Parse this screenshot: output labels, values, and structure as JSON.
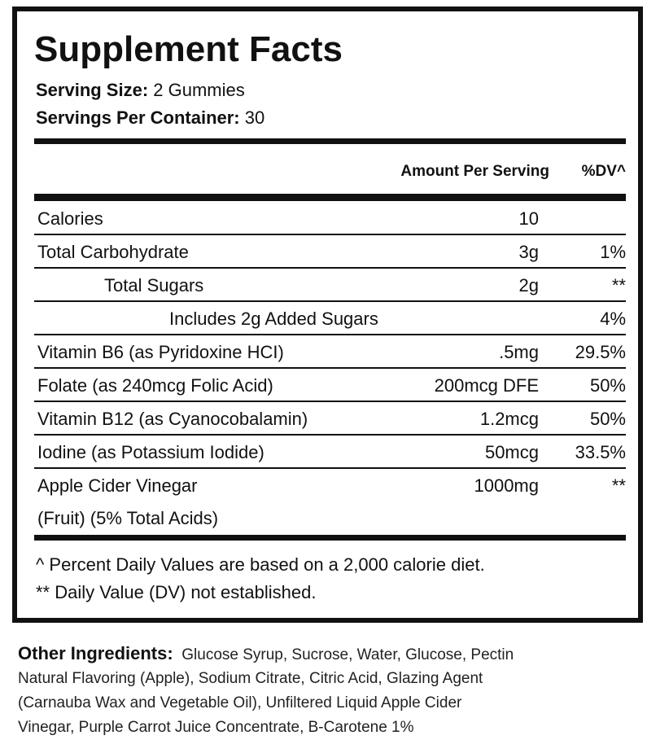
{
  "header": {
    "title": "Supplement Facts",
    "serving_size_label": "Serving Size:",
    "serving_size": "2 Gummies",
    "servings_label": "Servings Per Container:",
    "servings": "30"
  },
  "columns": {
    "amount": "Amount Per Serving",
    "dv": "%DV^"
  },
  "rows": [
    {
      "name": "Calories",
      "amount": "10"
    },
    {
      "name": "Total Carbohydrate",
      "amount": "3g",
      "dv": "1%"
    },
    {
      "name": "Total Sugars",
      "amount": "2g",
      "dv": "**"
    },
    {
      "name": "Includes 2g Added Sugars",
      "dv": "4%"
    },
    {
      "name": "Vitamin B6 (as Pyridoxine HCI)",
      "amount": ".5mg",
      "dv": "29.5%"
    },
    {
      "name": "Folate (as 240mcg Folic Acid)",
      "amount": "200mcg DFE",
      "dv": "50%"
    },
    {
      "name": "Vitamin B12 (as Cyanocobalamin)",
      "amount": "1.2mcg",
      "dv": "50%"
    },
    {
      "name": "Iodine (as Potassium Iodide)",
      "amount": "50mcg",
      "dv": "33.5%"
    },
    {
      "name": "Apple Cider Vinegar",
      "name2": "(Fruit) (5% Total Acids)",
      "amount": "1000mg",
      "dv": "**"
    }
  ],
  "footnotes": [
    "^ Percent Daily Values are based on a 2,000 calorie diet.",
    "** Daily Value (DV) not established."
  ],
  "other_ingredients": {
    "label": "Other Ingredients:",
    "lines": [
      "Glucose Syrup, Sucrose, Water, Glucose, Pectin",
      "Natural Flavoring (Apple), Sodium Citrate, Citric Acid, Glazing Agent",
      "(Carnauba Wax and Vegetable Oil), Unfiltered Liquid Apple Cider",
      "Vinegar, Purple Carrot Juice Concentrate, B-Carotene 1%"
    ]
  }
}
